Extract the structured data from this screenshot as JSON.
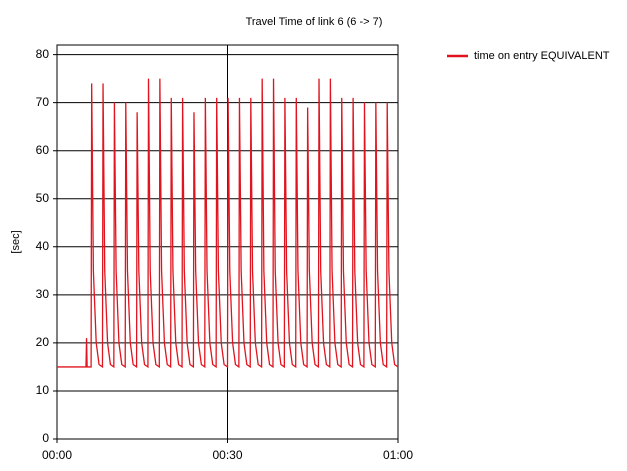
{
  "chart_data": {
    "type": "line",
    "title": "Travel Time of link 6 (6 -> 7)",
    "y_label": "[sec]",
    "x": [
      0,
      5.1,
      5.2,
      5.3,
      6,
      6.1,
      6.4,
      6.9,
      7.4,
      8,
      8.1,
      8.4,
      8.9,
      9.4,
      10,
      10.1,
      10.4,
      10.9,
      11.4,
      12,
      12.1,
      12.4,
      12.9,
      13.4,
      14,
      14.1,
      14.4,
      14.9,
      15.4,
      16,
      16.1,
      16.4,
      16.9,
      17.4,
      18,
      18.1,
      18.4,
      18.9,
      19.4,
      20,
      20.1,
      20.4,
      20.9,
      21.4,
      22,
      22.1,
      22.4,
      22.9,
      23.4,
      24,
      24.1,
      24.4,
      24.9,
      25.4,
      26,
      26.1,
      26.4,
      26.9,
      27.4,
      28,
      28.1,
      28.4,
      28.9,
      29.4,
      30,
      30.1,
      30.4,
      30.9,
      31.4,
      32,
      32.1,
      32.4,
      32.9,
      33.4,
      34,
      34.1,
      34.4,
      34.9,
      35.4,
      36,
      36.1,
      36.4,
      36.9,
      37.4,
      38,
      38.1,
      38.4,
      38.9,
      39.4,
      40,
      40.1,
      40.4,
      40.9,
      41.4,
      42,
      42.1,
      42.4,
      42.9,
      43.4,
      44,
      44.1,
      44.4,
      44.9,
      45.4,
      46,
      46.1,
      46.4,
      46.9,
      47.4,
      48,
      48.1,
      48.4,
      48.9,
      49.4,
      50,
      50.1,
      50.4,
      50.9,
      51.4,
      52,
      52.1,
      52.4,
      52.9,
      53.4,
      54,
      54.1,
      54.4,
      54.9,
      55.4,
      56,
      56.1,
      56.4,
      56.9,
      57.4,
      58,
      58.1,
      58.4,
      58.9,
      59.4,
      60
    ],
    "series": [
      {
        "name": "time on entry EQUIVALENT",
        "color": "#e0141e",
        "values": [
          15,
          15,
          21,
          15,
          15,
          74,
          35,
          20,
          15.5,
          15,
          74,
          35,
          20,
          15.5,
          15,
          70,
          35,
          20,
          15.5,
          15,
          70,
          35,
          20,
          15.5,
          15,
          68,
          35,
          20,
          15.5,
          15,
          75,
          35,
          20,
          15.5,
          15,
          75,
          35,
          20,
          15.5,
          15,
          71,
          35,
          20,
          15.5,
          15,
          71,
          35,
          20,
          15.5,
          15,
          68,
          35,
          20,
          15.5,
          15,
          71,
          35,
          20,
          15.5,
          15,
          71,
          35,
          20,
          15.5,
          15,
          71,
          35,
          20,
          15.5,
          15,
          71,
          35,
          20,
          15.5,
          15,
          71,
          35,
          20,
          15.5,
          15,
          75,
          35,
          20,
          15.5,
          15,
          75,
          35,
          20,
          15.5,
          15,
          71,
          35,
          20,
          15.5,
          15,
          71,
          35,
          20,
          15.5,
          15,
          69,
          35,
          20,
          15.5,
          15,
          75,
          35,
          20,
          15.5,
          15,
          75,
          35,
          20,
          15.5,
          15,
          71,
          35,
          20,
          15.5,
          15,
          71,
          35,
          20,
          15.5,
          15,
          70,
          35,
          20,
          15.5,
          15,
          70,
          35,
          20,
          15.5,
          15,
          70,
          35,
          20,
          15.5,
          15
        ]
      }
    ],
    "xlim": [
      0,
      60
    ],
    "xticks": [
      {
        "value": 0,
        "label": "00:00"
      },
      {
        "value": 30,
        "label": "00:30"
      },
      {
        "value": 60,
        "label": "01:00"
      }
    ],
    "ylim": [
      0,
      82
    ],
    "yticks": [
      0,
      10,
      20,
      30,
      40,
      50,
      60,
      70,
      80
    ],
    "grid": true,
    "legend": "top-right"
  }
}
